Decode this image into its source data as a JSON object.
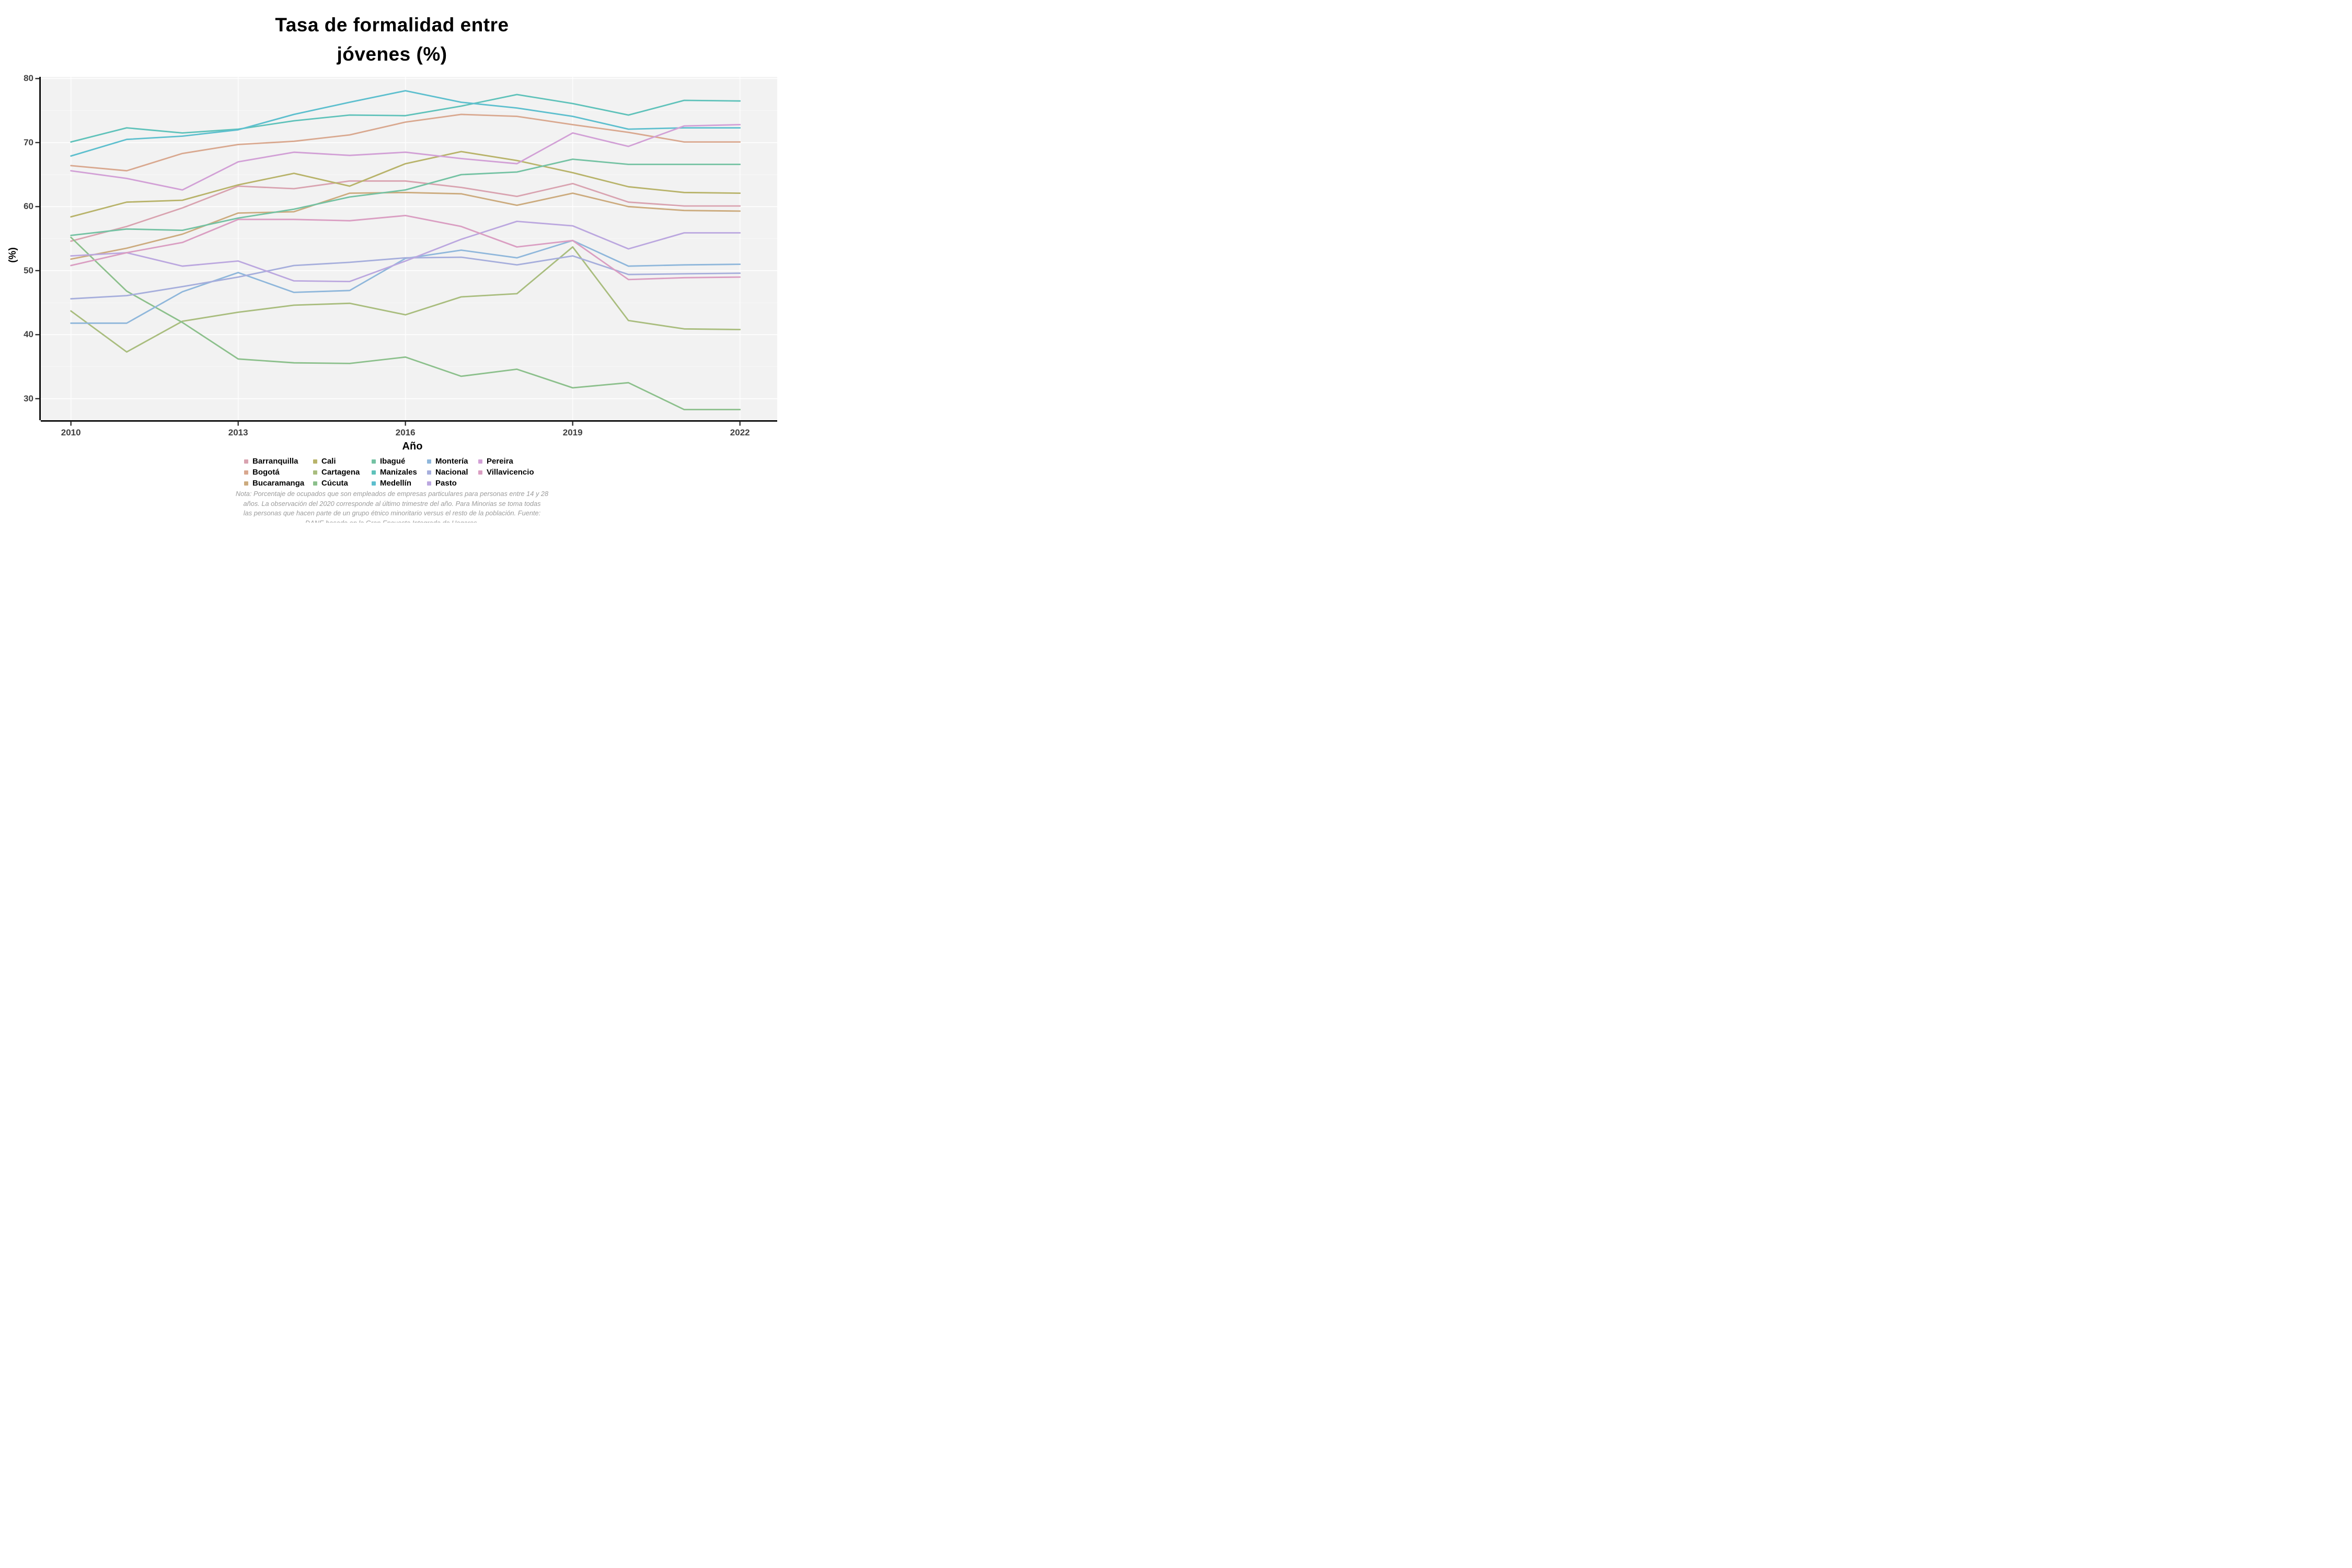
{
  "title": {
    "line1": "Tasa de formalidad entre",
    "line2": "jóvenes (%)"
  },
  "axes": {
    "x_label": "Año",
    "y_label": "(%)",
    "x_ticks": [
      2010,
      2013,
      2016,
      2019,
      2022
    ],
    "y_ticks": [
      30,
      40,
      50,
      60,
      70,
      80
    ]
  },
  "note": {
    "lines": [
      "Nota: Porcentaje de ocupados que son empleados de empresas particulares para personas entre 14 y 28",
      "años. La observación del 2020 corresponde al último trimestre del año. Para Minorias se toma todas",
      "las personas que hacen parte de un grupo étnico minoritario versus el resto de la población. Fuente:",
      "DANE basado en la Gran Encuesta Integrada de Hogares."
    ]
  },
  "chart_data": {
    "type": "line",
    "title": "Tasa de formalidad entre jóvenes (%)",
    "xlabel": "Año",
    "ylabel": "(%)",
    "x": [
      2010,
      2011,
      2012,
      2013,
      2014,
      2015,
      2016,
      2017,
      2018,
      2019,
      2020,
      2021,
      2022
    ],
    "xlim": [
      2010,
      2022
    ],
    "ylim": [
      26.6,
      80.3
    ],
    "grid": true,
    "legend_position": "bottom",
    "panel_background": "#f2f2f2",
    "grid_color": "#ffffff",
    "series": [
      {
        "name": "Barranquilla",
        "color": "#d9a3b0",
        "values": [
          54.6,
          56.9,
          59.8,
          63.2,
          62.8,
          64.0,
          64.0,
          63.0,
          61.6,
          63.6,
          60.7,
          60.1,
          60.1
        ]
      },
      {
        "name": "Bogotá",
        "color": "#d9a88f",
        "values": [
          66.4,
          65.6,
          68.3,
          69.7,
          70.2,
          71.2,
          73.2,
          74.4,
          74.1,
          72.8,
          71.6,
          70.1,
          70.1
        ]
      },
      {
        "name": "Bucaramanga",
        "color": "#ccab7e",
        "values": [
          51.8,
          53.5,
          55.7,
          59.0,
          59.2,
          62.1,
          62.2,
          62.0,
          60.2,
          62.1,
          60.0,
          59.4,
          59.3
        ]
      },
      {
        "name": "Cali",
        "color": "#b8b36a",
        "values": [
          58.4,
          60.7,
          61.0,
          63.4,
          65.2,
          63.2,
          66.7,
          68.6,
          67.2,
          65.3,
          63.1,
          62.2,
          62.1
        ]
      },
      {
        "name": "Cartagena",
        "color": "#a9bd7e",
        "values": [
          43.7,
          37.3,
          42.1,
          43.5,
          44.6,
          44.9,
          43.1,
          45.9,
          46.4,
          53.7,
          42.2,
          40.9,
          40.8
        ]
      },
      {
        "name": "Cúcuta",
        "color": "#8cc08c",
        "values": [
          55.2,
          46.8,
          41.9,
          36.2,
          35.6,
          35.5,
          36.5,
          33.5,
          34.6,
          31.7,
          32.5,
          28.3,
          28.3
        ]
      },
      {
        "name": "Ibagué",
        "color": "#74c2a3",
        "values": [
          55.5,
          56.5,
          56.3,
          58.2,
          59.6,
          61.5,
          62.6,
          65.0,
          65.4,
          67.4,
          66.6,
          66.6,
          66.6
        ]
      },
      {
        "name": "Manizales",
        "color": "#5fc2ba",
        "values": [
          70.1,
          72.3,
          71.5,
          72.1,
          73.4,
          74.3,
          74.2,
          75.7,
          77.5,
          76.1,
          74.3,
          76.6,
          76.5
        ]
      },
      {
        "name": "Medellín",
        "color": "#5dbfce",
        "values": [
          67.9,
          70.5,
          71.0,
          72.0,
          74.4,
          76.3,
          78.1,
          76.3,
          75.4,
          74.1,
          72.1,
          72.3,
          72.3
        ]
      },
      {
        "name": "Montería",
        "color": "#8fb7db",
        "values": [
          41.8,
          41.8,
          46.7,
          49.7,
          46.6,
          46.9,
          51.9,
          53.2,
          52.0,
          54.7,
          50.7,
          50.9,
          51.0
        ]
      },
      {
        "name": "Nacional",
        "color": "#a6aedc",
        "values": [
          45.6,
          46.1,
          47.5,
          49.0,
          50.8,
          51.3,
          52.0,
          52.1,
          50.9,
          52.3,
          49.4,
          49.5,
          49.6
        ]
      },
      {
        "name": "Pasto",
        "color": "#bba7df",
        "values": [
          52.3,
          52.8,
          50.7,
          51.5,
          48.4,
          48.3,
          51.5,
          54.9,
          57.7,
          57.0,
          53.4,
          55.9,
          55.9
        ]
      },
      {
        "name": "Pereira",
        "color": "#d2a0d6",
        "values": [
          65.6,
          64.4,
          62.6,
          67.0,
          68.5,
          68.0,
          68.5,
          67.5,
          66.7,
          71.5,
          69.4,
          72.6,
          72.8
        ]
      },
      {
        "name": "Villavicencio",
        "color": "#da9ec2",
        "values": [
          50.8,
          52.8,
          54.4,
          58.0,
          58.0,
          57.8,
          58.6,
          56.9,
          53.7,
          54.7,
          48.6,
          48.9,
          49.0
        ]
      }
    ]
  }
}
